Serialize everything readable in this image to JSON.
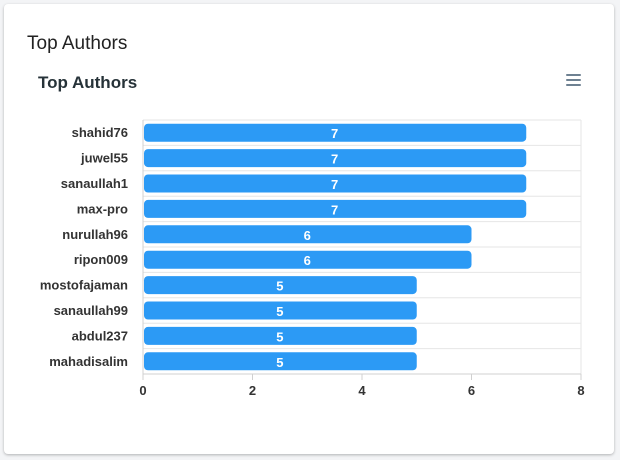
{
  "card": {
    "title": "Top Authors"
  },
  "toolbar": {
    "menu_icon": "hamburger-menu-icon"
  },
  "colors": {
    "bar": "#2c9af5",
    "grid": "#e6e6e6",
    "axis": "#d0d0d0",
    "label": "#333333",
    "value_label": "#ffffff"
  },
  "chart_data": {
    "type": "bar",
    "orientation": "horizontal",
    "title": "Top Authors",
    "categories": [
      "shahid76",
      "juwel55",
      "sanaullah1",
      "max-pro",
      "nurullah96",
      "ripon009",
      "mostofajaman",
      "sanaullah99",
      "abdul237",
      "mahadisalim"
    ],
    "values": [
      7,
      7,
      7,
      7,
      6,
      6,
      5,
      5,
      5,
      5
    ],
    "xlim": [
      0,
      8
    ],
    "xticks": [
      0,
      2,
      4,
      6,
      8
    ],
    "data_labels": true,
    "grid": true,
    "legend": "none"
  }
}
